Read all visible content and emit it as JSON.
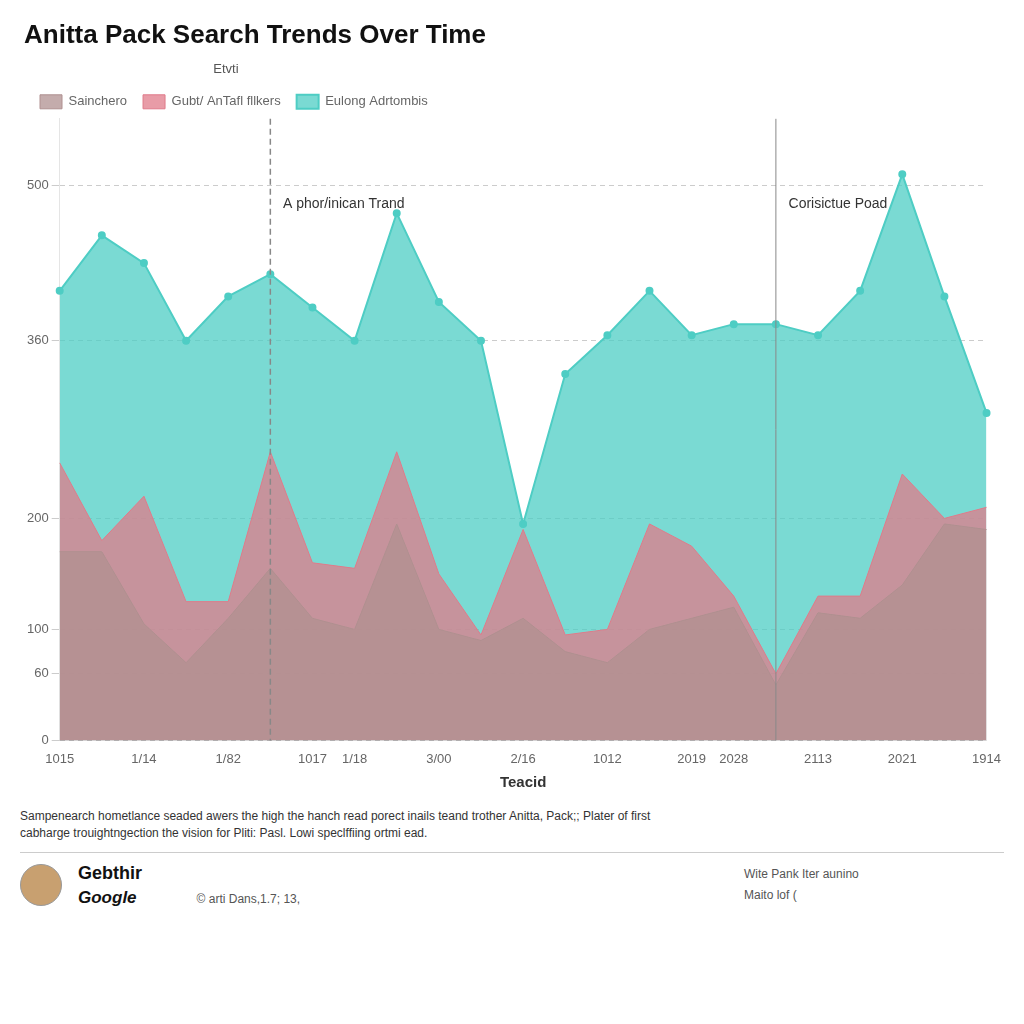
{
  "chart_data": {
    "type": "area",
    "title": "Anitta Pack Search Trends Over Time",
    "xlabel": "Teacid",
    "categories": [
      "1015",
      null,
      "1/14",
      null,
      "1/82",
      null,
      "1017",
      "1/18",
      null,
      "3/00",
      null,
      "2/16",
      null,
      "1012",
      null,
      "2019",
      "2028",
      null,
      "2113",
      null,
      "2021",
      null,
      "1914"
    ],
    "series": [
      {
        "name": "Sainchero",
        "color": "#b09090",
        "values": [
          170,
          170,
          105,
          70,
          110,
          155,
          110,
          100,
          195,
          100,
          90,
          110,
          80,
          70,
          100,
          110,
          120,
          50,
          115,
          110,
          140,
          195,
          190
        ]
      },
      {
        "name": "Gubt/ AnTafl fllkers",
        "color": "#e07b8a",
        "values": [
          250,
          180,
          220,
          125,
          125,
          260,
          160,
          155,
          260,
          150,
          95,
          190,
          95,
          100,
          195,
          175,
          130,
          60,
          130,
          130,
          240,
          200,
          210
        ]
      },
      {
        "name": "Eulong Adrtombis",
        "color": "#4ecdc4",
        "marker": "circle",
        "values": [
          405,
          455,
          430,
          360,
          400,
          420,
          390,
          360,
          475,
          395,
          360,
          195,
          330,
          365,
          405,
          365,
          375,
          375,
          365,
          405,
          510,
          400,
          295
        ]
      }
    ],
    "ylim": [
      0,
      560
    ],
    "yticks": [
      0,
      60,
      100,
      200,
      360,
      500
    ],
    "grid": "y",
    "legend": "top",
    "legend_title": "Etvti",
    "annotations": [
      {
        "x": 5,
        "y": 480,
        "text": "A phor/inican Trand",
        "line_style": "dashed"
      },
      {
        "x": 17,
        "y": 480,
        "text": "Corisictue Poad",
        "line_style": "solid"
      }
    ],
    "note": "Sampenearch hometlance seaded awers the high the hanch read porect inails teand trother Anitta, Pack;; Plater of first\ncabharge trouightngection the vision for Pliti: Pasl. Lowi speclffiing ortmi ead.",
    "author_name": "Gebthir",
    "author_org": "Google",
    "author_date": "© arti Dans,1.7; 13,",
    "right_notes": [
      "Wite Pank Iter aunino",
      "Maito lof ("
    ]
  }
}
